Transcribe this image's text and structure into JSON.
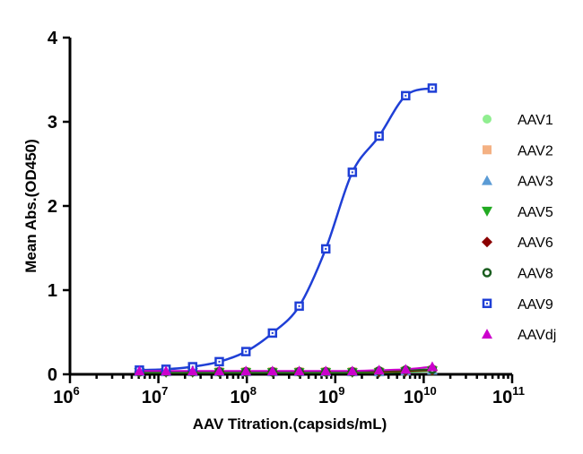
{
  "chart_data": {
    "type": "scatter",
    "title": "",
    "xlabel": "AAV Titration.(capsids/mL)",
    "ylabel": "Mean Abs.(OD450)",
    "x_scale": "log",
    "xlim": [
      1000000,
      100000000000
    ],
    "ylim": [
      0,
      4
    ],
    "x_ticks": [
      {
        "base": "10",
        "exp": "6"
      },
      {
        "base": "10",
        "exp": "7"
      },
      {
        "base": "10",
        "exp": "8"
      },
      {
        "base": "10",
        "exp": "9"
      },
      {
        "base": "10",
        "exp": "10"
      },
      {
        "base": "10",
        "exp": "11"
      }
    ],
    "y_ticks": [
      "0",
      "1",
      "2",
      "3",
      "4"
    ],
    "legend_position": "right",
    "x": [
      6100000,
      12200000,
      24400000,
      48800000,
      97700000,
      195000000,
      391000000,
      781000000,
      1560000000,
      3130000000,
      6250000000,
      12500000000
    ],
    "series": [
      {
        "name": "AAV1",
        "color": "#90ee90",
        "marker": "circle",
        "values": [
          0.03,
          0.03,
          0.03,
          0.03,
          0.03,
          0.03,
          0.03,
          0.03,
          0.03,
          0.03,
          0.04,
          0.05
        ]
      },
      {
        "name": "AAV2",
        "color": "#f4b183",
        "marker": "square",
        "values": [
          0.03,
          0.03,
          0.03,
          0.03,
          0.03,
          0.03,
          0.03,
          0.03,
          0.03,
          0.03,
          0.04,
          0.05
        ]
      },
      {
        "name": "AAV3",
        "color": "#5b9bd5",
        "marker": "triangle-up",
        "values": [
          0.03,
          0.03,
          0.03,
          0.03,
          0.03,
          0.03,
          0.03,
          0.03,
          0.03,
          0.03,
          0.04,
          0.05
        ]
      },
      {
        "name": "AAV5",
        "color": "#22aa22",
        "marker": "triangle-down",
        "values": [
          0.02,
          0.02,
          0.02,
          0.02,
          0.02,
          0.02,
          0.02,
          0.02,
          0.02,
          0.02,
          0.03,
          0.04
        ]
      },
      {
        "name": "AAV6",
        "color": "#8b0000",
        "marker": "diamond",
        "values": [
          0.03,
          0.03,
          0.03,
          0.03,
          0.03,
          0.03,
          0.03,
          0.03,
          0.03,
          0.03,
          0.04,
          0.05
        ]
      },
      {
        "name": "AAV8",
        "color": "#1b5e20",
        "marker": "circle-open",
        "values": [
          0.03,
          0.03,
          0.03,
          0.03,
          0.03,
          0.03,
          0.03,
          0.03,
          0.03,
          0.04,
          0.05,
          0.06
        ]
      },
      {
        "name": "AAV9",
        "color": "#1f3fd6",
        "marker": "square-open",
        "values": [
          0.05,
          0.06,
          0.09,
          0.15,
          0.27,
          0.49,
          0.81,
          1.49,
          2.4,
          2.83,
          3.31,
          3.4
        ]
      },
      {
        "name": "AAVdj",
        "color": "#cc00cc",
        "marker": "triangle-up",
        "values": [
          0.04,
          0.04,
          0.04,
          0.04,
          0.04,
          0.04,
          0.04,
          0.04,
          0.04,
          0.05,
          0.06,
          0.09
        ]
      }
    ]
  }
}
